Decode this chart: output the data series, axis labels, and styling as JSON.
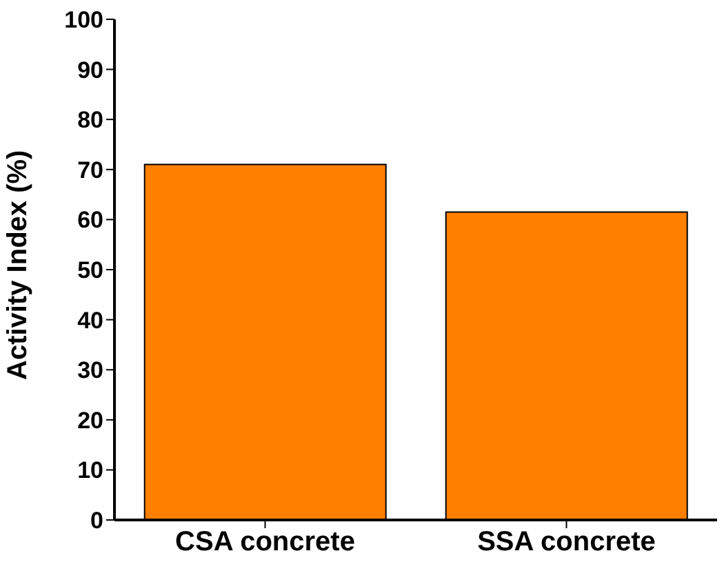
{
  "chart_data": {
    "type": "bar",
    "ylabel": "Activity Index (%)",
    "categories": [
      "CSA concrete",
      "SSA concrete"
    ],
    "values": [
      71,
      61.5
    ],
    "color": "#ff8000",
    "ylim": [
      0,
      100
    ],
    "yticks": [
      0,
      10,
      20,
      30,
      40,
      50,
      60,
      70,
      80,
      90,
      100
    ],
    "grid": false,
    "legend": false
  }
}
